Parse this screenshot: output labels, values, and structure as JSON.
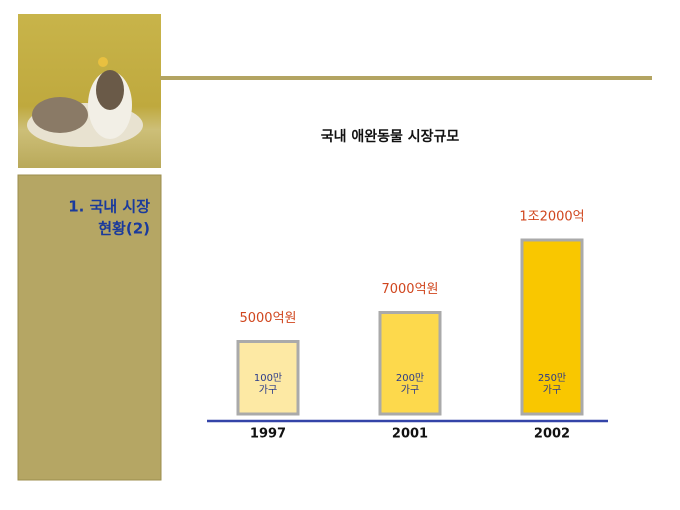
{
  "sidebar_title": [
    "1. 국내 시장",
    "현황(2)"
  ],
  "chart_data": {
    "type": "bar",
    "title": "국내 애완동물 시장규모",
    "categories": [
      "1997",
      "2001",
      "2002"
    ],
    "values": [
      5000,
      7000,
      12000
    ],
    "value_labels": [
      "5000억원",
      "7000억원",
      "1조2000억"
    ],
    "inner_labels": [
      [
        "100만",
        "가구"
      ],
      [
        "200만",
        "가구"
      ],
      [
        "250만",
        "가구"
      ]
    ],
    "colors": [
      "#fde9a4",
      "#fdd94c",
      "#f9c700"
    ]
  }
}
